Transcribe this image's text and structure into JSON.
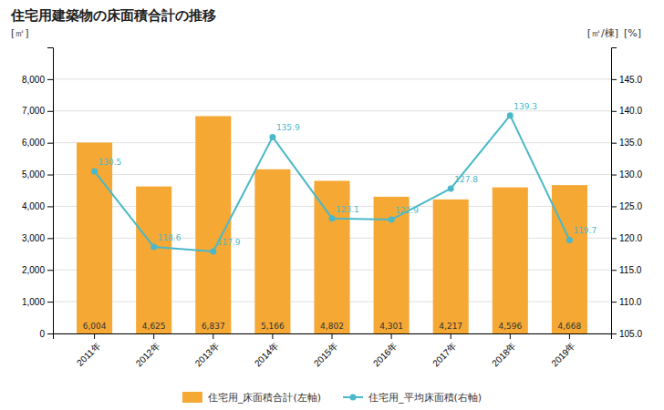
{
  "chart_data": {
    "type": "bar",
    "title": "住宅用建築物の床面積合計の推移",
    "ylabel": "[㎡]",
    "y2label": [
      "[㎡/棟]",
      "[%]"
    ],
    "categories": [
      "2011年",
      "2012年",
      "2013年",
      "2014年",
      "2015年",
      "2016年",
      "2017年",
      "2018年",
      "2019年"
    ],
    "series": [
      {
        "name": "住宅用_床面積合計(左軸)",
        "type": "bar",
        "color": "#f5a833",
        "values": [
          6004,
          4625,
          6837,
          5166,
          4802,
          4301,
          4217,
          4596,
          4668
        ],
        "value_labels": [
          "6,004",
          "4,625",
          "6,837",
          "5,166",
          "4,802",
          "4,301",
          "4,217",
          "4,596",
          "4,668"
        ]
      },
      {
        "name": "住宅用_平均床面積(右軸)",
        "type": "line",
        "axis": "y2",
        "color": "#4ab8c8",
        "marker": "circle",
        "values": [
          130.5,
          118.6,
          117.9,
          135.9,
          123.1,
          122.9,
          127.8,
          139.3,
          119.7
        ]
      }
    ],
    "ylim": [
      0,
      9000
    ],
    "yticks": [
      0,
      {
        "value": 1000,
        "label": "1,000"
      },
      {
        "value": 2000,
        "label": "2,000"
      },
      {
        "value": 3000,
        "label": "3,000"
      },
      {
        "value": 4000,
        "label": "4,000"
      },
      {
        "value": 5000,
        "label": "5,000"
      },
      {
        "value": 6000,
        "label": "6,000"
      },
      {
        "value": 7000,
        "label": "7,000"
      },
      {
        "value": 8000,
        "label": "8,000"
      }
    ],
    "y2lim": [
      105.0,
      150.0
    ],
    "y2ticks": [
      {
        "value": 105,
        "label": "105.0"
      },
      {
        "value": 110,
        "label": "110.0"
      },
      {
        "value": 115,
        "label": "115.0"
      },
      {
        "value": 120,
        "label": "120.0"
      },
      {
        "value": 125,
        "label": "125.0"
      },
      {
        "value": 130,
        "label": "130.0"
      },
      {
        "value": 135,
        "label": "135.0"
      },
      {
        "value": 140,
        "label": "140.0"
      },
      {
        "value": 145,
        "label": "145.0"
      }
    ],
    "grid": true,
    "legend": "bottom",
    "data_labels": true
  }
}
